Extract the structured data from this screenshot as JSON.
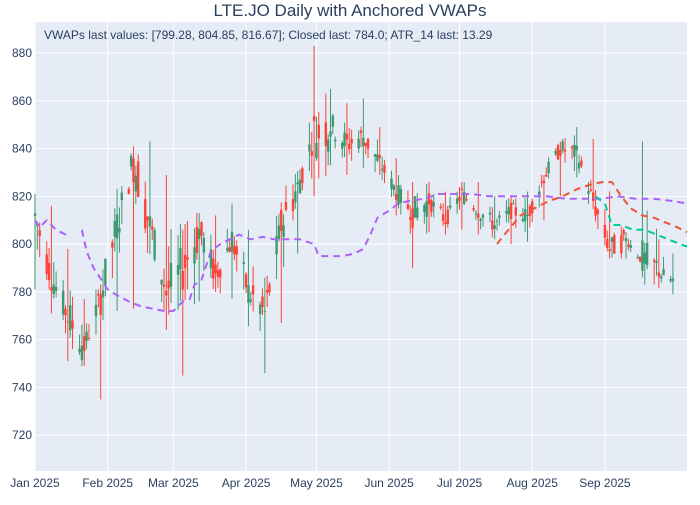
{
  "chart_data": {
    "type": "candlestick",
    "title": "LTE.JO Daily with Anchored VWAPs",
    "annotation": "VWAPs last values: [799.28, 804.85, 816.67]; Closed last: 784.0; ATR_14 last: 13.29",
    "xlabel": "",
    "ylabel": "",
    "xlim": [
      "2025-01-01",
      "2025-10-06"
    ],
    "ylim": [
      705,
      893
    ],
    "grid": true,
    "legend": "none",
    "x_ticks": [
      {
        "date": "2025-01-01",
        "label": "Jan 2025"
      },
      {
        "date": "2025-02-01",
        "label": "Feb 2025"
      },
      {
        "date": "2025-03-01",
        "label": "Mar 2025"
      },
      {
        "date": "2025-04-01",
        "label": "Apr 2025"
      },
      {
        "date": "2025-05-01",
        "label": "May 2025"
      },
      {
        "date": "2025-06-01",
        "label": "Jun 2025"
      },
      {
        "date": "2025-07-01",
        "label": "Jul 2025"
      },
      {
        "date": "2025-08-01",
        "label": "Aug 2025"
      },
      {
        "date": "2025-09-01",
        "label": "Sep 2025"
      }
    ],
    "y_ticks": [
      720,
      740,
      760,
      780,
      800,
      820,
      840,
      860,
      880
    ],
    "colors": {
      "up": "#3d9970",
      "down": "#ff4136",
      "vwap1": "#ab63fa",
      "vwap2": "#ef553b",
      "vwap3": "#00cc96"
    },
    "anchor_points": [
      [
        "2025-01-01",
        800,
        821,
        781,
        812
      ],
      [
        "2025-01-08",
        812,
        816,
        781,
        786
      ],
      [
        "2025-01-15",
        786,
        798,
        751,
        770
      ],
      [
        "2025-01-22",
        770,
        777,
        749,
        757
      ],
      [
        "2025-01-29",
        757,
        781,
        735,
        778
      ],
      [
        "2025-02-05",
        778,
        815,
        772,
        808
      ],
      [
        "2025-02-12",
        808,
        838,
        773,
        836
      ],
      [
        "2025-02-19",
        836,
        843,
        799,
        808
      ],
      [
        "2025-02-26",
        808,
        829,
        772,
        780
      ],
      [
        "2025-03-05",
        780,
        806,
        745,
        790
      ],
      [
        "2025-03-12",
        790,
        813,
        776,
        806
      ],
      [
        "2025-03-19",
        806,
        812,
        780,
        787
      ],
      [
        "2025-03-26",
        787,
        817,
        777,
        802
      ],
      [
        "2025-04-02",
        802,
        806,
        770,
        780
      ],
      [
        "2025-04-09",
        780,
        786,
        746,
        771
      ],
      [
        "2025-04-16",
        771,
        813,
        767,
        808
      ],
      [
        "2025-04-23",
        808,
        830,
        796,
        824
      ],
      [
        "2025-04-30",
        824,
        883,
        820,
        846
      ],
      [
        "2025-05-07",
        846,
        865,
        833,
        850
      ],
      [
        "2025-05-14",
        850,
        859,
        829,
        842
      ],
      [
        "2025-05-21",
        842,
        861,
        832,
        845
      ],
      [
        "2025-05-28",
        845,
        849,
        829,
        834
      ],
      [
        "2025-06-04",
        834,
        836,
        812,
        822
      ],
      [
        "2025-06-11",
        822,
        826,
        790,
        813
      ],
      [
        "2025-06-18",
        813,
        826,
        805,
        818
      ],
      [
        "2025-06-25",
        818,
        822,
        804,
        810
      ],
      [
        "2025-07-02",
        810,
        825,
        806,
        821
      ],
      [
        "2025-07-09",
        821,
        826,
        804,
        814
      ],
      [
        "2025-07-16",
        814,
        820,
        802,
        808
      ],
      [
        "2025-07-23",
        808,
        820,
        800,
        814
      ],
      [
        "2025-07-30",
        814,
        822,
        801,
        812
      ],
      [
        "2025-08-06",
        812,
        829,
        810,
        828
      ],
      [
        "2025-08-13",
        828,
        842,
        820,
        840
      ],
      [
        "2025-08-20",
        840,
        849,
        828,
        838
      ],
      [
        "2025-08-27",
        838,
        844,
        815,
        818
      ],
      [
        "2025-09-03",
        818,
        822,
        794,
        798
      ],
      [
        "2025-09-10",
        798,
        805,
        794,
        802
      ],
      [
        "2025-09-17",
        802,
        843,
        790,
        793
      ],
      [
        "2025-09-24",
        793,
        802,
        783,
        788
      ],
      [
        "2025-10-01",
        788,
        796,
        779,
        784
      ]
    ],
    "series": [
      {
        "points": [
          [
            "2025-01-01",
            810
          ],
          [
            "2025-01-03",
            807
          ],
          [
            "2025-01-06",
            810
          ],
          [
            "2025-01-10",
            806
          ],
          [
            "2025-01-16",
            803
          ]
        ]
      },
      {
        "points": [
          [
            "2025-01-21",
            806
          ],
          [
            "2025-01-23",
            797
          ],
          [
            "2025-01-26",
            790
          ],
          [
            "2025-02-01",
            781
          ],
          [
            "2025-02-06",
            778
          ],
          [
            "2025-02-10",
            776
          ],
          [
            "2025-02-15",
            774
          ],
          [
            "2025-02-20",
            773
          ],
          [
            "2025-02-25",
            772
          ],
          [
            "2025-03-01",
            772
          ],
          [
            "2025-03-03",
            774
          ],
          [
            "2025-03-05",
            776
          ],
          [
            "2025-03-08",
            777
          ],
          [
            "2025-03-09",
            780
          ],
          [
            "2025-03-10",
            783
          ],
          [
            "2025-03-13",
            785
          ],
          [
            "2025-03-17",
            797
          ],
          [
            "2025-03-21",
            800
          ],
          [
            "2025-03-25",
            802
          ],
          [
            "2025-03-29",
            804
          ],
          [
            "2025-04-03",
            802
          ],
          [
            "2025-04-08",
            803
          ],
          [
            "2025-04-13",
            802
          ],
          [
            "2025-04-18",
            802
          ],
          [
            "2025-04-24",
            802
          ],
          [
            "2025-04-30",
            800
          ],
          [
            "2025-05-02",
            795
          ],
          [
            "2025-05-07",
            795
          ],
          [
            "2025-05-12",
            795
          ],
          [
            "2025-05-17",
            796
          ],
          [
            "2025-05-21",
            798
          ],
          [
            "2025-05-24",
            804
          ],
          [
            "2025-05-27",
            811
          ],
          [
            "2025-06-01",
            814
          ],
          [
            "2025-06-05",
            817
          ],
          [
            "2025-06-09",
            818
          ],
          [
            "2025-06-16",
            819
          ],
          [
            "2025-06-22",
            821
          ],
          [
            "2025-06-28",
            821
          ],
          [
            "2025-07-06",
            821
          ],
          [
            "2025-07-14",
            820
          ],
          [
            "2025-07-22",
            820
          ],
          [
            "2025-07-30",
            820
          ],
          [
            "2025-08-07",
            820
          ],
          [
            "2025-08-15",
            819
          ],
          [
            "2025-08-23",
            819
          ],
          [
            "2025-08-31",
            819
          ],
          [
            "2025-09-06",
            820
          ],
          [
            "2025-09-14",
            819
          ],
          [
            "2025-09-22",
            819
          ],
          [
            "2025-09-30",
            818
          ],
          [
            "2025-10-06",
            817
          ]
        ]
      },
      {
        "points": [
          [
            "2025-07-17",
            800
          ],
          [
            "2025-07-21",
            805
          ],
          [
            "2025-07-27",
            812
          ],
          [
            "2025-08-02",
            815
          ],
          [
            "2025-08-08",
            818
          ],
          [
            "2025-08-14",
            820
          ],
          [
            "2025-08-20",
            823
          ],
          [
            "2025-08-26",
            825
          ],
          [
            "2025-08-31",
            826
          ],
          [
            "2025-09-04",
            826
          ],
          [
            "2025-09-08",
            820
          ],
          [
            "2025-09-12",
            815
          ],
          [
            "2025-09-17",
            812
          ],
          [
            "2025-09-22",
            811
          ],
          [
            "2025-09-27",
            809
          ],
          [
            "2025-10-02",
            807
          ],
          [
            "2025-10-06",
            805
          ]
        ]
      },
      {
        "points": [
          [
            "2025-08-28",
            820
          ],
          [
            "2025-09-01",
            817
          ],
          [
            "2025-09-04",
            808
          ],
          [
            "2025-09-08",
            808
          ],
          [
            "2025-09-13",
            806
          ],
          [
            "2025-09-18",
            806
          ],
          [
            "2025-09-23",
            804
          ],
          [
            "2025-09-28",
            802
          ],
          [
            "2025-10-03",
            800
          ],
          [
            "2025-10-06",
            799
          ]
        ]
      }
    ]
  }
}
